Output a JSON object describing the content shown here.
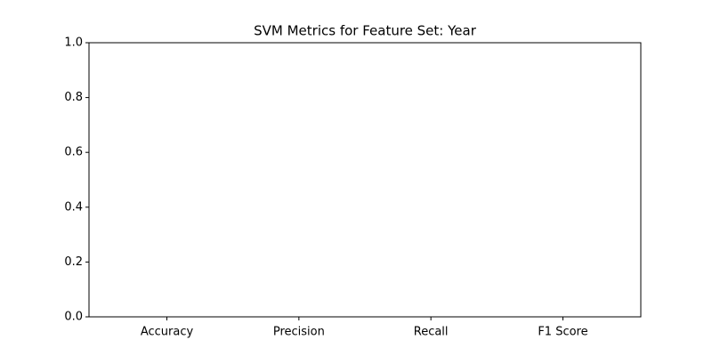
{
  "chart_data": {
    "type": "bar",
    "title": "SVM Metrics for Feature Set: Year",
    "categories": [
      "Accuracy",
      "Precision",
      "Recall",
      "F1 Score"
    ],
    "values": [
      0,
      0,
      0,
      0
    ],
    "color": "#1f77b4",
    "ylim": [
      0,
      1
    ],
    "yticks": [
      {
        "value": 0,
        "label": "0.0"
      },
      0.2,
      0.4,
      0.6,
      0.8,
      {
        "value": 1,
        "label": "1.0"
      }
    ],
    "grid": false
  }
}
